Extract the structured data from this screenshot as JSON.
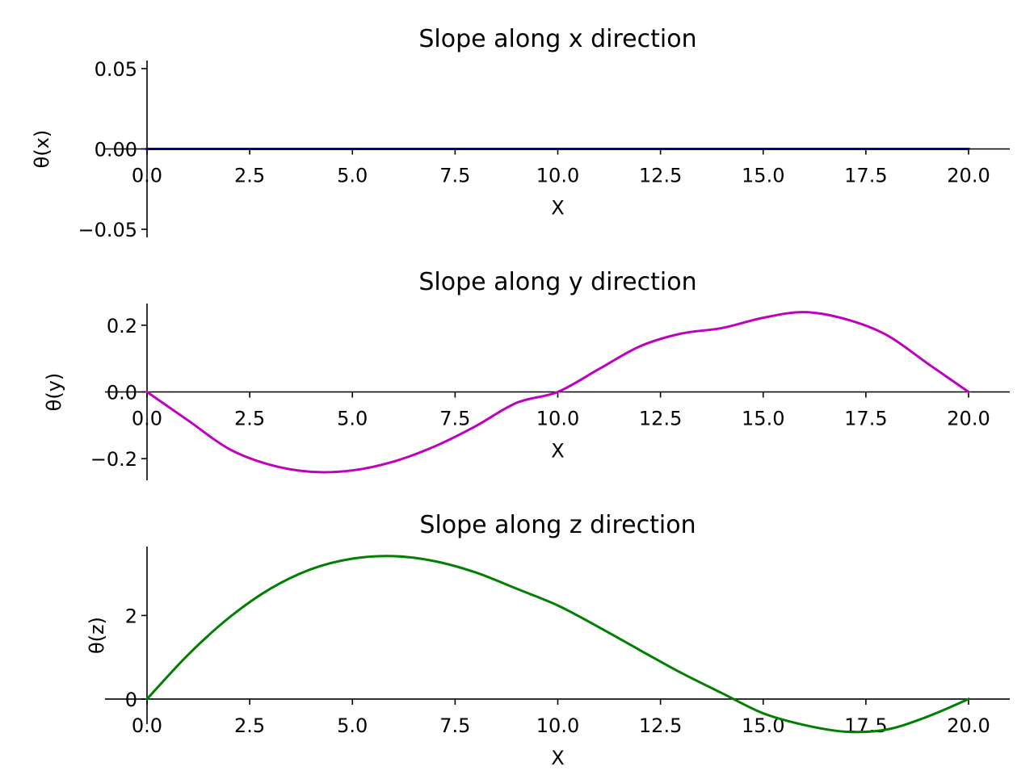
{
  "chart_data": [
    {
      "type": "line",
      "title": "Slope along x direction",
      "xlabel": "X",
      "ylabel": "θ(x)",
      "xlim": [
        0,
        20
      ],
      "ylim": [
        -0.055,
        0.055
      ],
      "x_ticks": [
        {
          "value": 0,
          "label": "0.0"
        },
        {
          "value": 2.5,
          "label": "2.5"
        },
        {
          "value": 5,
          "label": "5.0"
        },
        {
          "value": 7.5,
          "label": "7.5"
        },
        {
          "value": 10,
          "label": "10.0"
        },
        {
          "value": 12.5,
          "label": "12.5"
        },
        {
          "value": 15,
          "label": "15.0"
        },
        {
          "value": 17.5,
          "label": "17.5"
        },
        {
          "value": 20,
          "label": "20.0"
        }
      ],
      "y_ticks": [
        {
          "value": 0.05,
          "label": "0.05"
        },
        {
          "value": 0,
          "label": "0.00"
        },
        {
          "value": -0.05,
          "label": "−0.05"
        }
      ],
      "grid": false,
      "series": [
        {
          "color": "#000080",
          "x": [
            0,
            2.5,
            5,
            7.5,
            10,
            12.5,
            15,
            17.5,
            20
          ],
          "y": [
            0,
            0,
            0,
            0,
            0,
            0,
            0,
            0,
            0
          ]
        }
      ]
    },
    {
      "type": "line",
      "title": "Slope along y direction",
      "xlabel": "X",
      "ylabel": "θ(y)",
      "xlim": [
        0,
        20
      ],
      "ylim": [
        -0.265,
        0.265
      ],
      "x_ticks": [
        {
          "value": 0,
          "label": "0.0"
        },
        {
          "value": 2.5,
          "label": "2.5"
        },
        {
          "value": 5,
          "label": "5.0"
        },
        {
          "value": 7.5,
          "label": "7.5"
        },
        {
          "value": 10,
          "label": "10.0"
        },
        {
          "value": 12.5,
          "label": "12.5"
        },
        {
          "value": 15,
          "label": "15.0"
        },
        {
          "value": 17.5,
          "label": "17.5"
        },
        {
          "value": 20,
          "label": "20.0"
        }
      ],
      "y_ticks": [
        {
          "value": 0.2,
          "label": "0.2"
        },
        {
          "value": 0,
          "label": "0.0"
        },
        {
          "value": -0.2,
          "label": "−0.2"
        }
      ],
      "grid": false,
      "series": [
        {
          "color": "#bf00bf",
          "x": [
            0,
            1,
            2,
            3,
            4,
            5,
            6,
            7,
            8,
            9,
            10,
            11,
            12,
            13,
            14,
            15,
            16,
            17,
            18,
            19,
            20
          ],
          "y": [
            0,
            -0.0855,
            -0.171,
            -0.2185,
            -0.2394,
            -0.2352,
            -0.2088,
            -0.1633,
            -0.1026,
            -0.0324,
            0,
            0.0684,
            0.1368,
            0.1748,
            0.1916,
            0.2223,
            0.2394,
            0.2185,
            0.171,
            0.0855,
            0
          ]
        }
      ]
    },
    {
      "type": "line",
      "title": "Slope along z direction",
      "xlabel": "X",
      "ylabel": "θ(z)",
      "xlim": [
        0,
        20
      ],
      "ylim": [
        -0.6,
        3.65
      ],
      "x_ticks": [
        {
          "value": 0,
          "label": "0.0"
        },
        {
          "value": 2.5,
          "label": "2.5"
        },
        {
          "value": 5,
          "label": "5.0"
        },
        {
          "value": 7.5,
          "label": "7.5"
        },
        {
          "value": 10,
          "label": "10.0"
        },
        {
          "value": 12.5,
          "label": "12.5"
        },
        {
          "value": 15,
          "label": "15.0"
        },
        {
          "value": 17.5,
          "label": "17.5"
        },
        {
          "value": 20,
          "label": "20.0"
        }
      ],
      "y_ticks": [
        {
          "value": 2,
          "label": "2"
        },
        {
          "value": 0,
          "label": "0"
        }
      ],
      "grid": false,
      "series": [
        {
          "color": "#008000",
          "x": [
            0,
            1,
            2,
            3,
            4,
            5,
            6,
            7,
            8,
            9,
            10,
            11,
            12,
            13,
            14,
            15,
            16,
            17,
            18,
            19,
            20
          ],
          "y": [
            0,
            1.06,
            1.95,
            2.64,
            3.11,
            3.36,
            3.42,
            3.3,
            3.03,
            2.64,
            2.24,
            1.72,
            1.17,
            0.63,
            0.14,
            -0.34,
            -0.62,
            -0.78,
            -0.73,
            -0.42,
            0
          ]
        }
      ]
    }
  ]
}
